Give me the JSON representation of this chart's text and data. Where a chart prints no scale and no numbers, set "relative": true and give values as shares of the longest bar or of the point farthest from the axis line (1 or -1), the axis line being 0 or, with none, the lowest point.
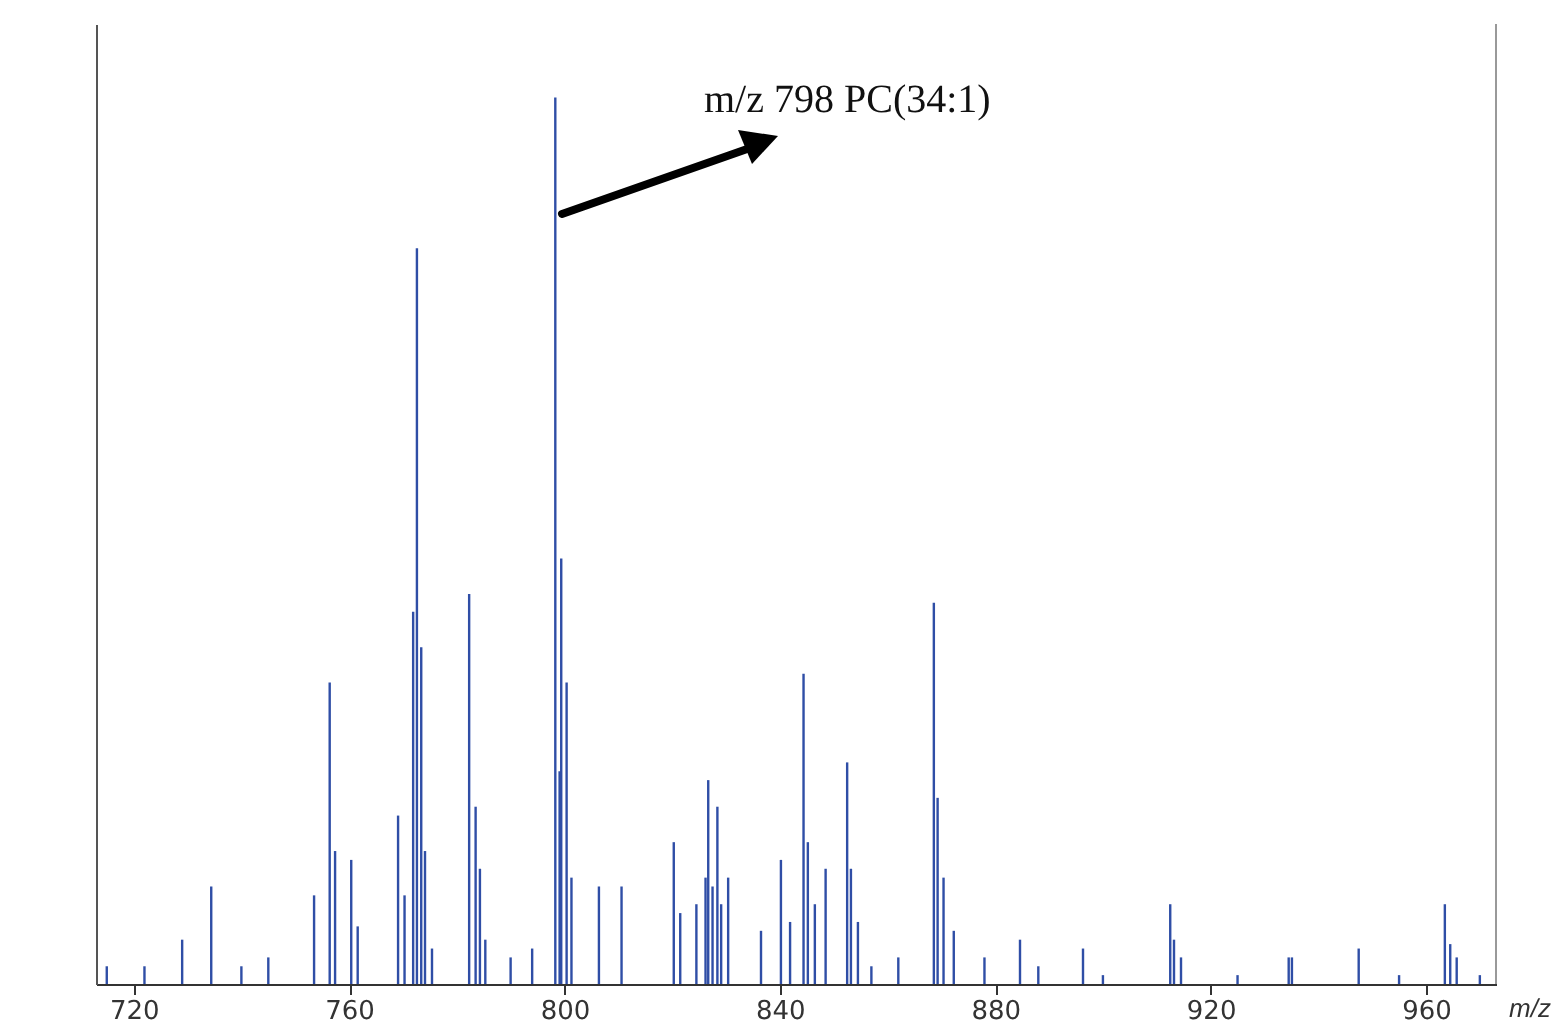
{
  "chart_data": {
    "type": "bar",
    "relative": true,
    "color": "#2f4ea6",
    "xlabel": "m/z",
    "xlim": [
      713,
      973
    ],
    "xticks": [
      720,
      760,
      800,
      840,
      880,
      920,
      960
    ],
    "annotations": [
      "m/z 798 PC(34:1)"
    ],
    "x": [
      715,
      722,
      729.0,
      734.4,
      740,
      745,
      753.5,
      756.4,
      757.4,
      760.4,
      761.6,
      769.1,
      770.3,
      771.9,
      772.6,
      773.4,
      774.1,
      775.4,
      782.3,
      783.2,
      783.5,
      784.3,
      785.3,
      790,
      794,
      798.3,
      799.1,
      799.4,
      800.4,
      801.3,
      806.4,
      810.6,
      820.3,
      821.5,
      824.5,
      826.2,
      826.7,
      827.5,
      828.4,
      829.1,
      830.4,
      836.5,
      840.2,
      841.9,
      844.4,
      845.2,
      846.5,
      848.5,
      852.5,
      853.2,
      854.5,
      857,
      862,
      868.6,
      869.3,
      870.4,
      872.3,
      878,
      884.6,
      888,
      896.3,
      900,
      912.5,
      913.2,
      914.5,
      925,
      934.5,
      935.1,
      947.5,
      955,
      963.5,
      964.5,
      965.7,
      970
    ],
    "values": [
      0.02,
      0.02,
      0.05,
      0.11,
      0.02,
      0.03,
      0.1,
      0.34,
      0.15,
      0.14,
      0.065,
      0.19,
      0.1,
      0.42,
      0.83,
      0.38,
      0.15,
      0.04,
      0.44,
      null,
      0.2,
      0.13,
      0.05,
      0.03,
      0.04,
      1.0,
      0.24,
      0.48,
      0.34,
      0.12,
      0.11,
      0.11,
      0.16,
      0.08,
      0.09,
      0.12,
      0.23,
      0.11,
      0.2,
      0.09,
      0.12,
      0.06,
      0.14,
      0.07,
      0.35,
      0.16,
      0.09,
      0.13,
      0.25,
      0.13,
      0.07,
      0.02,
      0.03,
      0.43,
      0.21,
      0.12,
      0.06,
      0.03,
      0.05,
      0.02,
      0.04,
      0.01,
      0.09,
      0.05,
      0.03,
      0.01,
      0.03,
      0.03,
      0.04,
      0.01,
      0.09,
      0.045,
      0.03,
      0.01
    ]
  }
}
